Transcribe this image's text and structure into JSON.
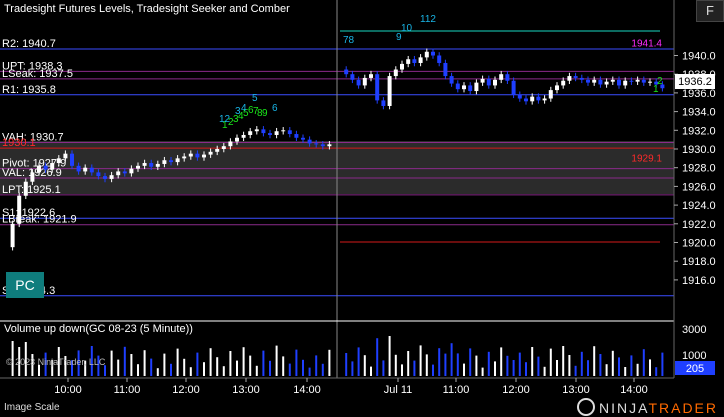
{
  "title": "Tradesight Futures Levels, Tradesight Seeker and Comber",
  "buttons": {
    "f": "F",
    "pc": "PC"
  },
  "levels": [
    {
      "label": "R2: 1940.7",
      "price": 1940.7,
      "color": "#ffffff"
    },
    {
      "label": "UPT: 1938.3",
      "price": 1938.3,
      "color": "#ffffff"
    },
    {
      "label": "LSeak: 1937.5",
      "price": 1937.5,
      "color": "#ffffff"
    },
    {
      "label": "R1: 1935.8",
      "price": 1935.8,
      "color": "#ffffff"
    },
    {
      "label": "VAH: 1930.7",
      "price": 1930.7,
      "color": "#ffffff"
    },
    {
      "label": "1930.1",
      "price": 1930.1,
      "color": "#ff2a2a"
    },
    {
      "label": "Pivot: 1927.9",
      "price": 1927.9,
      "color": "#ffffff"
    },
    {
      "label": "VAL: 1926.9",
      "price": 1926.9,
      "color": "#ffffff"
    },
    {
      "label": "LPT: 1925.1",
      "price": 1925.1,
      "color": "#ffffff"
    },
    {
      "label": "S1: 1922.6",
      "price": 1922.6,
      "color": "#ffffff"
    },
    {
      "label": "LBreak: 1921.9",
      "price": 1921.9,
      "color": "#ffffff"
    },
    {
      "label": "S2: 1914.3",
      "price": 1914.3,
      "color": "#ffffff"
    }
  ],
  "right_annotations": [
    {
      "label": "1941.4",
      "price": 1941.4,
      "color": "#ff2aff"
    },
    {
      "label": "1929.1",
      "price": 1929.1,
      "color": "#ff2a2a"
    }
  ],
  "last_price": "1936.2",
  "price_axis_ticks": [
    "1940.0",
    "1938.0",
    "1936.0",
    "1934.0",
    "1932.0",
    "1930.0",
    "1928.0",
    "1926.0",
    "1924.0",
    "1922.0",
    "1920.0",
    "1918.0",
    "1916.0"
  ],
  "volume": {
    "title": "Volume up down(GC 08-23 (5 Minute))",
    "axis_ticks": [
      "3000",
      "1000"
    ],
    "last_value": "205"
  },
  "time_axis": [
    "10:00",
    "11:00",
    "12:00",
    "13:00",
    "14:00",
    "Jul 11",
    "11:00",
    "12:00",
    "13:00",
    "14:00"
  ],
  "seeker_counts": [
    {
      "label": "1",
      "color": "#19e619"
    },
    {
      "label": "2",
      "color": "#19e619"
    },
    {
      "label": "3",
      "color": "#19e619"
    },
    {
      "label": "4",
      "color": "#19e619"
    },
    {
      "label": "5",
      "color": "#19e619"
    },
    {
      "label": "6",
      "color": "#19e619"
    },
    {
      "label": "7",
      "color": "#19e619"
    },
    {
      "label": "8",
      "color": "#19e619"
    },
    {
      "label": "9",
      "color": "#19e619"
    },
    {
      "label": "12",
      "color": "#19b5e6"
    },
    {
      "label": "3",
      "color": "#19b5e6"
    },
    {
      "label": "4",
      "color": "#19b5e6"
    },
    {
      "label": "5",
      "color": "#19b5e6"
    },
    {
      "label": "6",
      "color": "#19b5e6"
    },
    {
      "label": "78",
      "color": "#19b5e6"
    },
    {
      "label": "9",
      "color": "#19b5e6"
    },
    {
      "label": "10",
      "color": "#19b5e6"
    },
    {
      "label": "112",
      "color": "#19b5e6"
    },
    {
      "label": "1",
      "color": "#19e619"
    },
    {
      "label": "2",
      "color": "#19e619"
    }
  ],
  "copyright": "© 2023 NinjaTrader, LLC",
  "image_scale": "Image Scale",
  "brand": {
    "part1": "NINJA",
    "part2": "TRADER"
  },
  "colors": {
    "up": "#ffffff",
    "down": "#1f3fff",
    "value_area": "#3a3a3a"
  }
}
